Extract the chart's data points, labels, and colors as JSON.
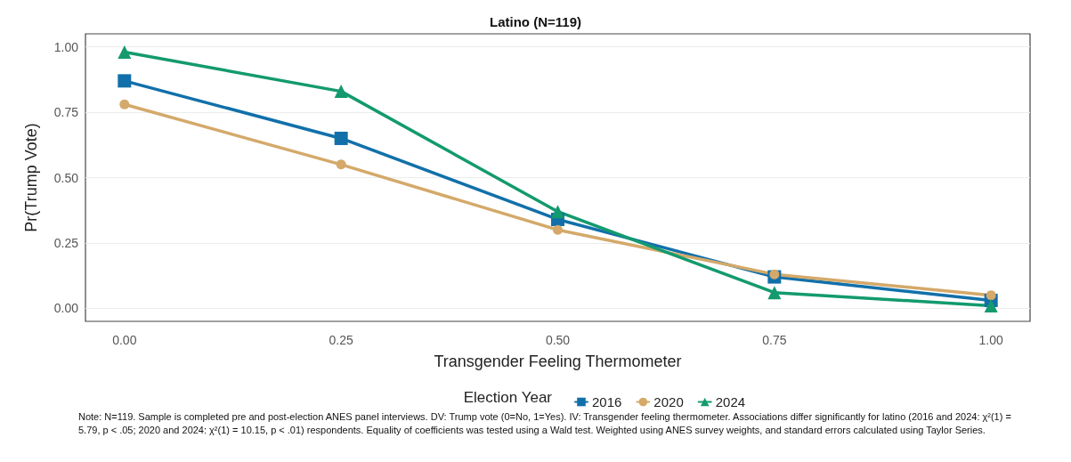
{
  "chart_data": {
    "type": "line",
    "title": "Latino (N=119)",
    "xlabel": "Transgender Feeling Thermometer",
    "ylabel": "Pr(Trump Vote)",
    "legend_title": "Election Year",
    "legend": "bottom",
    "grid": "y",
    "x": [
      0,
      0.25,
      0.5,
      0.75,
      1
    ],
    "xlim": [
      -0.045,
      1.045
    ],
    "xticks": [
      {
        "value": 0,
        "label": "0.00"
      },
      {
        "value": 0.25,
        "label": "0.25"
      },
      {
        "value": 0.5,
        "label": "0.50"
      },
      {
        "value": 0.75,
        "label": "0.75"
      },
      {
        "value": 1,
        "label": "1.00"
      }
    ],
    "ylim": [
      -0.05,
      1.05
    ],
    "yticks": [
      {
        "value": 0,
        "label": "0.00"
      },
      {
        "value": 0.25,
        "label": "0.25"
      },
      {
        "value": 0.5,
        "label": "0.50"
      },
      {
        "value": 0.75,
        "label": "0.75"
      },
      {
        "value": 1,
        "label": "1.00"
      }
    ],
    "series": [
      {
        "name": "2016",
        "color": "#1170aa",
        "marker": "square",
        "values": [
          0.87,
          0.65,
          0.34,
          0.12,
          0.03
        ]
      },
      {
        "name": "2020",
        "color": "#d4a96a",
        "marker": "circle",
        "values": [
          0.78,
          0.55,
          0.3,
          0.13,
          0.05
        ]
      },
      {
        "name": "2024",
        "color": "#139a6e",
        "marker": "triangle",
        "values": [
          0.98,
          0.83,
          0.37,
          0.06,
          0.01
        ]
      }
    ],
    "annotations": [
      "Note: N=119. Sample is completed pre and post-election ANES panel interviews. DV: Trump vote (0=No, 1=Yes). IV: Transgender feeling thermometer. Associations differ significantly for latino (2016 and 2024: χ²(1) = 5.79, p < .05; 2020 and 2024: χ²(1) = 10.15, p < .01) respondents. Equality of coefficients was tested using a Wald test. Weighted using ANES survey weights, and standard errors calculated using Taylor Series."
    ]
  }
}
